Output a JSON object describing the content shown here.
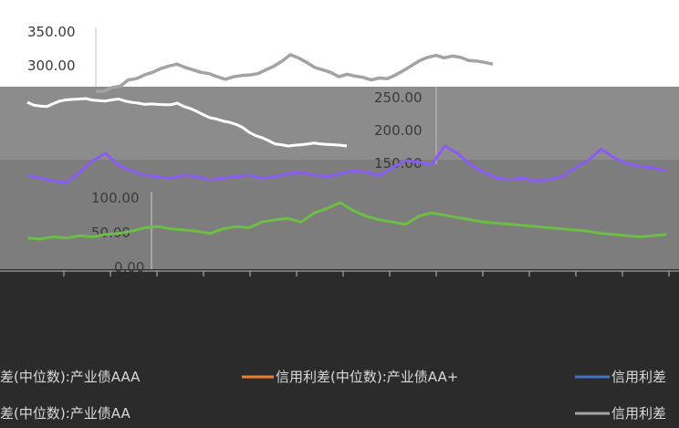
{
  "chart_data": {
    "type": "line",
    "title": "",
    "xlabel": "",
    "ylabel": "",
    "ylim": [
      0,
      350
    ],
    "y_ticks_upper": [
      "350.00",
      "300.00",
      "250.00",
      "200.00",
      "150.00"
    ],
    "y_ticks_lower": [
      "100.00",
      "50.00",
      "0.00"
    ],
    "colors": {
      "aaa": "#a3a3a3",
      "aa_plus": "#ed7d31",
      "aa": "#8a5cf5",
      "aa_minus": "#a5a5a5",
      "green": "#6dbe45",
      "white": "#ffffff",
      "dark_band": "#2b2b2b",
      "mid_band": "#8c8c8c"
    },
    "series": [
      {
        "key": "gray_top",
        "values": [
          262,
          262,
          268,
          270,
          280,
          282,
          288,
          292,
          298,
          302,
          305,
          300,
          296,
          292,
          290,
          285,
          281,
          285,
          287,
          288,
          290,
          296,
          302,
          310,
          320,
          315,
          308,
          300,
          296,
          292,
          285,
          289,
          286,
          284,
          280,
          283,
          282,
          288,
          295,
          303,
          311,
          316,
          319,
          315,
          318,
          316,
          311,
          310,
          308,
          305
        ]
      },
      {
        "key": "white_mid",
        "values": [
          250,
          243,
          241,
          240,
          247,
          253,
          256,
          257,
          258,
          259,
          255,
          254,
          253,
          256,
          258,
          253,
          250,
          248,
          245,
          246,
          245,
          244,
          244,
          248,
          240,
          235,
          228,
          220,
          213,
          210,
          205,
          202,
          197,
          190,
          178,
          170,
          165,
          158,
          150,
          148,
          145,
          147,
          148,
          150,
          152,
          150,
          149,
          148,
          147,
          145
        ]
      },
      {
        "key": "purple",
        "values": [
          140,
          138,
          136,
          135,
          142,
          150,
          155,
          147,
          143,
          140,
          139,
          138,
          140,
          139,
          137,
          138,
          139,
          140,
          138,
          139,
          141,
          142,
          140,
          139,
          141,
          143,
          142,
          140,
          145,
          150,
          149,
          147,
          160,
          155,
          147,
          142,
          138,
          137,
          138,
          136,
          137,
          139,
          145,
          150,
          158,
          152,
          148,
          146,
          145,
          143
        ]
      },
      {
        "key": "green",
        "values": [
          56,
          55,
          57,
          56,
          58,
          57,
          59,
          60,
          62,
          65,
          66,
          64,
          63,
          62,
          60,
          64,
          66,
          65,
          70,
          72,
          73,
          70,
          78,
          82,
          87,
          80,
          75,
          72,
          70,
          68,
          75,
          78,
          76,
          74,
          72,
          70,
          69,
          68,
          67,
          66,
          65,
          64,
          63,
          62,
          60,
          59,
          58,
          57,
          58,
          59
        ]
      }
    ],
    "legend": [
      {
        "label": "信用利差(中位数):产业债AAA",
        "color": "#5b9bd5"
      },
      {
        "label": "信用利差(中位数):产业债AA+",
        "color": "#ed7d31"
      },
      {
        "label": "信用利差(中位数):产业债AA",
        "color": "#a5a5a5"
      },
      {
        "label": "信用利差",
        "color": "#4472c4"
      },
      {
        "label": "信用利差",
        "color": "#a5a5a5"
      }
    ]
  }
}
